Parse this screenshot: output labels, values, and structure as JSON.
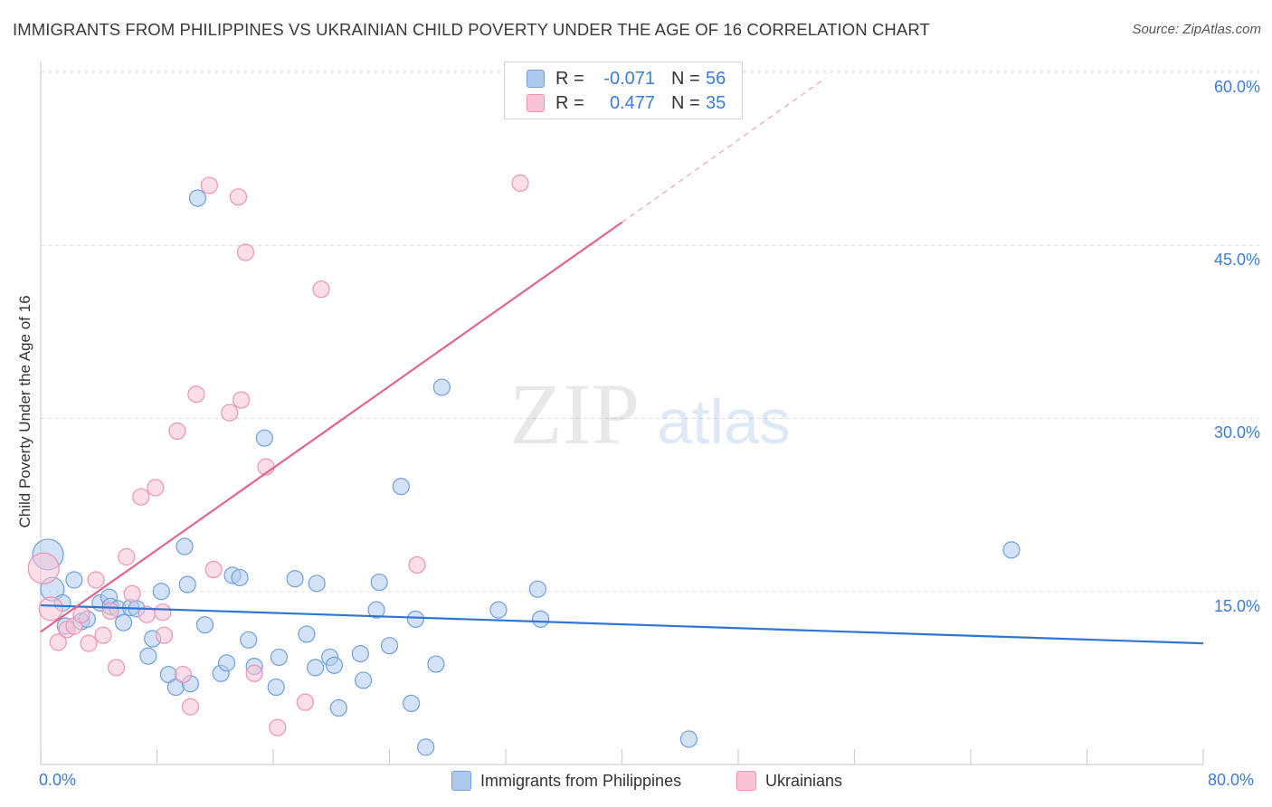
{
  "title": "IMMIGRANTS FROM PHILIPPINES VS UKRAINIAN CHILD POVERTY UNDER THE AGE OF 16 CORRELATION CHART",
  "source": "Source: ZipAtlas.com",
  "watermark": {
    "zip": "ZIP",
    "atlas": "atlas"
  },
  "colors": {
    "blue_fill": "#aecbef",
    "blue_stroke": "#6f9fdc",
    "blue_line": "#2f76d2",
    "pink_fill": "#f8c3d4",
    "pink_stroke": "#ec93b2",
    "pink_line": "#e0648f",
    "axis_text": "#3d7bd9",
    "grid": "#dcdcdc"
  },
  "legend_top": {
    "rows": [
      {
        "r_label": "R =",
        "r_value": "-0.071",
        "n_label": "N =",
        "n_value": "56"
      },
      {
        "r_label": "R =",
        "r_value": "0.477",
        "n_label": "N =",
        "n_value": "35"
      }
    ]
  },
  "legend_bottom": [
    "Immigrants from Philippines",
    "Ukrainians"
  ],
  "chart_data": {
    "type": "scatter",
    "title": "IMMIGRANTS FROM PHILIPPINES VS UKRAINIAN CHILD POVERTY UNDER THE AGE OF 16 CORRELATION CHART",
    "xlabel": "",
    "ylabel": "Child Poverty Under the Age of 16",
    "xlim": [
      0,
      80
    ],
    "ylim": [
      0,
      62
    ],
    "x_tick_labels": [
      "0.0%",
      "80.0%"
    ],
    "y_tick_labels": [
      {
        "value": 15,
        "label": "15.0%"
      },
      {
        "value": 30,
        "label": "30.0%"
      },
      {
        "value": 45,
        "label": "45.0%"
      },
      {
        "value": 60,
        "label": "60.0%"
      }
    ],
    "grid": true,
    "series": [
      {
        "name": "Immigrants from Philippines",
        "color": "blue",
        "R": -0.071,
        "N": 56,
        "trend": {
          "x": [
            0,
            80
          ],
          "y": [
            13.8,
            10.5
          ]
        },
        "points": [
          [
            0.5,
            18.2,
            3
          ],
          [
            0.8,
            15.2,
            2
          ],
          [
            1.5,
            14.0,
            1
          ],
          [
            1.7,
            12.0,
            1
          ],
          [
            2.3,
            16.0,
            1
          ],
          [
            2.8,
            12.4,
            1
          ],
          [
            3.2,
            12.6,
            1
          ],
          [
            4.1,
            14.0,
            1
          ],
          [
            4.7,
            14.5,
            1
          ],
          [
            4.8,
            13.7,
            1
          ],
          [
            5.3,
            13.5,
            1
          ],
          [
            5.7,
            12.3,
            1
          ],
          [
            6.2,
            13.6,
            1
          ],
          [
            6.6,
            13.5,
            1
          ],
          [
            7.4,
            9.4,
            1
          ],
          [
            7.7,
            10.9,
            1
          ],
          [
            8.3,
            15.0,
            1
          ],
          [
            8.8,
            7.8,
            1
          ],
          [
            9.3,
            6.7,
            1
          ],
          [
            9.9,
            18.9,
            1
          ],
          [
            10.1,
            15.6,
            1
          ],
          [
            10.3,
            7.0,
            1
          ],
          [
            10.8,
            49.1,
            1
          ],
          [
            11.3,
            12.1,
            1
          ],
          [
            12.4,
            7.9,
            1
          ],
          [
            12.8,
            8.8,
            1
          ],
          [
            13.2,
            16.4,
            1
          ],
          [
            13.7,
            16.2,
            1
          ],
          [
            14.3,
            10.8,
            1
          ],
          [
            14.7,
            8.5,
            1
          ],
          [
            15.4,
            28.3,
            1
          ],
          [
            16.2,
            6.7,
            1
          ],
          [
            16.4,
            9.3,
            1
          ],
          [
            17.5,
            16.1,
            1
          ],
          [
            18.3,
            11.3,
            1
          ],
          [
            18.9,
            8.4,
            1
          ],
          [
            19.0,
            15.7,
            1
          ],
          [
            19.9,
            9.3,
            1
          ],
          [
            20.2,
            8.6,
            1
          ],
          [
            20.5,
            4.9,
            1
          ],
          [
            22.0,
            9.6,
            1
          ],
          [
            22.2,
            7.3,
            1
          ],
          [
            23.1,
            13.4,
            1
          ],
          [
            23.3,
            15.8,
            1
          ],
          [
            24.0,
            10.3,
            1
          ],
          [
            24.8,
            24.1,
            1
          ],
          [
            25.5,
            5.3,
            1
          ],
          [
            25.8,
            12.6,
            1
          ],
          [
            26.5,
            1.5,
            1
          ],
          [
            27.2,
            8.7,
            1
          ],
          [
            27.6,
            32.7,
            1
          ],
          [
            31.5,
            13.4,
            1
          ],
          [
            34.2,
            15.2,
            1
          ],
          [
            34.4,
            12.6,
            1
          ],
          [
            44.6,
            2.2,
            1
          ],
          [
            66.8,
            18.6,
            1
          ]
        ]
      },
      {
        "name": "Ukrainians",
        "color": "pink",
        "R": 0.477,
        "N": 35,
        "trend": {
          "x": [
            0,
            40
          ],
          "y": [
            11.5,
            47.0
          ]
        },
        "trend_extension": {
          "x": [
            40,
            54
          ],
          "y": [
            47.0,
            59.5
          ]
        },
        "points": [
          [
            0.2,
            17.0,
            3
          ],
          [
            0.7,
            13.5,
            2
          ],
          [
            1.2,
            10.6,
            1
          ],
          [
            1.8,
            11.7,
            1
          ],
          [
            2.3,
            12.0,
            1
          ],
          [
            2.8,
            13.0,
            1
          ],
          [
            3.3,
            10.5,
            1
          ],
          [
            3.8,
            16.0,
            1
          ],
          [
            4.3,
            11.2,
            1
          ],
          [
            4.8,
            13.3,
            1
          ],
          [
            5.2,
            8.4,
            1
          ],
          [
            5.9,
            18.0,
            1
          ],
          [
            6.3,
            14.8,
            1
          ],
          [
            6.9,
            23.2,
            1
          ],
          [
            7.3,
            13.0,
            1
          ],
          [
            7.9,
            24.0,
            1
          ],
          [
            8.4,
            13.2,
            1
          ],
          [
            8.5,
            11.2,
            1
          ],
          [
            9.4,
            28.9,
            1
          ],
          [
            9.8,
            7.8,
            1
          ],
          [
            10.3,
            5.0,
            1
          ],
          [
            10.7,
            32.1,
            1
          ],
          [
            11.6,
            50.2,
            1
          ],
          [
            11.9,
            16.9,
            1
          ],
          [
            13.0,
            30.5,
            1
          ],
          [
            13.6,
            49.2,
            1
          ],
          [
            13.8,
            31.6,
            1
          ],
          [
            14.1,
            44.4,
            1
          ],
          [
            14.7,
            7.9,
            1
          ],
          [
            15.5,
            25.8,
            1
          ],
          [
            16.3,
            3.2,
            1
          ],
          [
            18.2,
            5.4,
            1
          ],
          [
            19.3,
            41.2,
            1
          ],
          [
            25.9,
            17.3,
            1
          ],
          [
            33.0,
            50.4,
            1
          ]
        ]
      }
    ]
  }
}
